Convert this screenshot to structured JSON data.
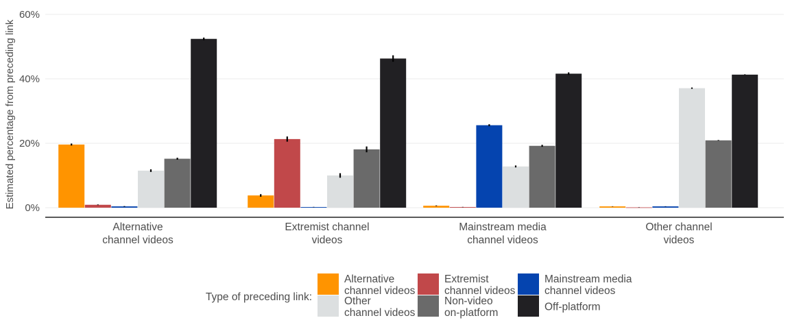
{
  "chart_data": {
    "type": "bar",
    "title": "",
    "xlabel": "",
    "ylabel": "Estimated percentage from preceding link",
    "ylim": [
      0,
      60
    ],
    "yticks": [
      0,
      20,
      40,
      60
    ],
    "ytick_labels": [
      "0%",
      "20%",
      "40%",
      "60%"
    ],
    "grid": true,
    "legend_position": "bottom",
    "legend_title": "Type of preceding link:",
    "categories": [
      [
        "Alternative",
        "channel videos"
      ],
      [
        "Extremist channel",
        "videos"
      ],
      [
        "Mainstream media",
        "channel videos"
      ],
      [
        "Other channel",
        "videos"
      ]
    ],
    "series": [
      {
        "name": [
          "Alternative",
          "channel videos"
        ],
        "color": "#FF9400",
        "values": [
          19.6,
          3.8,
          0.6,
          0.4
        ],
        "errors": [
          0.3,
          0.4,
          0.1,
          0.05
        ]
      },
      {
        "name": [
          "Extremist",
          "channel videos"
        ],
        "color": "#C1484A",
        "values": [
          0.9,
          21.3,
          0.2,
          0.1
        ],
        "errors": [
          0.1,
          0.8,
          0.05,
          0.05
        ]
      },
      {
        "name": [
          "Mainstream media",
          "channel videos"
        ],
        "color": "#0544AF",
        "values": [
          0.4,
          0.2,
          25.6,
          0.4
        ],
        "errors": [
          0.1,
          0.05,
          0.3,
          0.05
        ]
      },
      {
        "name": [
          "Other",
          "channel videos"
        ],
        "color": "#DCDFE0",
        "values": [
          11.5,
          10.0,
          12.8,
          37.1
        ],
        "errors": [
          0.4,
          0.7,
          0.3,
          0.2
        ]
      },
      {
        "name": [
          "Non-video",
          "on-platform"
        ],
        "color": "#6A6A6A",
        "values": [
          15.2,
          18.1,
          19.2,
          20.9
        ],
        "errors": [
          0.3,
          0.9,
          0.3,
          0.1
        ]
      },
      {
        "name": [
          "Off-platform"
        ],
        "color": "#212023",
        "values": [
          52.4,
          46.3,
          41.6,
          41.3
        ],
        "errors": [
          0.4,
          1.0,
          0.4,
          0.1
        ]
      }
    ]
  }
}
